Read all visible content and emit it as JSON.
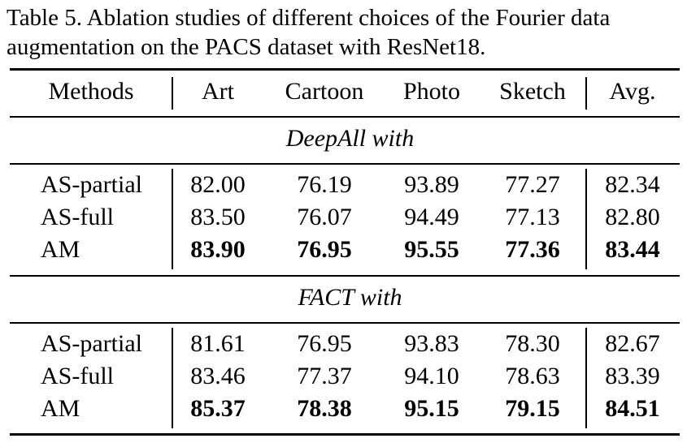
{
  "caption": "Table 5. Ablation studies of different choices of the Fourier data augmentation on the PACS dataset with ResNet18.",
  "headers": [
    "Methods",
    "Art",
    "Cartoon",
    "Photo",
    "Sketch",
    "Avg."
  ],
  "groups": [
    {
      "title": "DeepAll with",
      "rows": [
        {
          "method": "AS-partial",
          "values": [
            "82.00",
            "76.19",
            "93.89",
            "77.27",
            "82.34"
          ],
          "bold": false
        },
        {
          "method": "AS-full",
          "values": [
            "83.50",
            "76.07",
            "94.49",
            "77.13",
            "82.80"
          ],
          "bold": false
        },
        {
          "method": "AM",
          "values": [
            "83.90",
            "76.95",
            "95.55",
            "77.36",
            "83.44"
          ],
          "bold": true
        }
      ]
    },
    {
      "title": "FACT with",
      "rows": [
        {
          "method": "AS-partial",
          "values": [
            "81.61",
            "76.95",
            "93.83",
            "78.30",
            "82.67"
          ],
          "bold": false
        },
        {
          "method": "AS-full",
          "values": [
            "83.46",
            "77.37",
            "94.10",
            "78.63",
            "83.39"
          ],
          "bold": false
        },
        {
          "method": "AM",
          "values": [
            "85.37",
            "78.38",
            "95.15",
            "79.15",
            "84.51"
          ],
          "bold": true
        }
      ]
    }
  ]
}
